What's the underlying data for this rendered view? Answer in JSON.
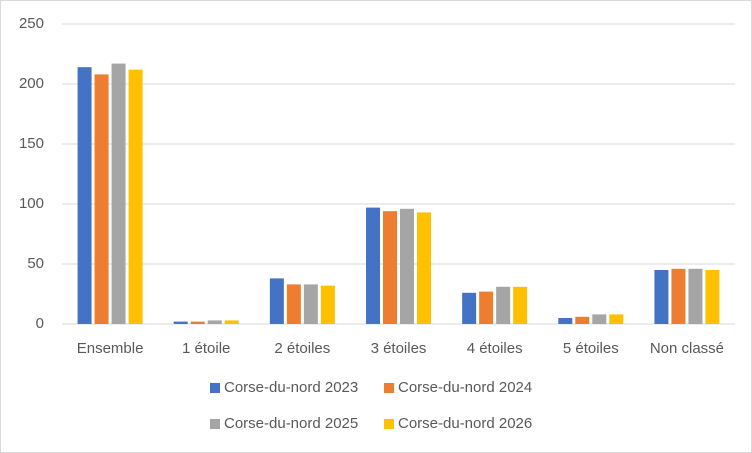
{
  "chart_data": {
    "type": "bar",
    "categories": [
      "Ensemble",
      "1 étoile",
      "2 étoiles",
      "3 étoiles",
      "4 étoiles",
      "5 étoiles",
      "Non classé"
    ],
    "series": [
      {
        "name": "Corse-du-nord 2023",
        "color": "#4472c4",
        "values": [
          214,
          2,
          38,
          97,
          26,
          5,
          45
        ]
      },
      {
        "name": "Corse-du-nord 2024",
        "color": "#ed7d31",
        "values": [
          208,
          2,
          33,
          94,
          27,
          6,
          46
        ]
      },
      {
        "name": "Corse-du-nord 2025",
        "color": "#a5a5a5",
        "values": [
          217,
          3,
          33,
          96,
          31,
          8,
          46
        ]
      },
      {
        "name": "Corse-du-nord 2026",
        "color": "#ffc000",
        "values": [
          212,
          3,
          32,
          93,
          31,
          8,
          45
        ]
      }
    ],
    "ylim": [
      0,
      250
    ],
    "yticks": [
      0,
      50,
      100,
      150,
      200,
      250
    ],
    "grid": true,
    "legend": "bottom"
  }
}
